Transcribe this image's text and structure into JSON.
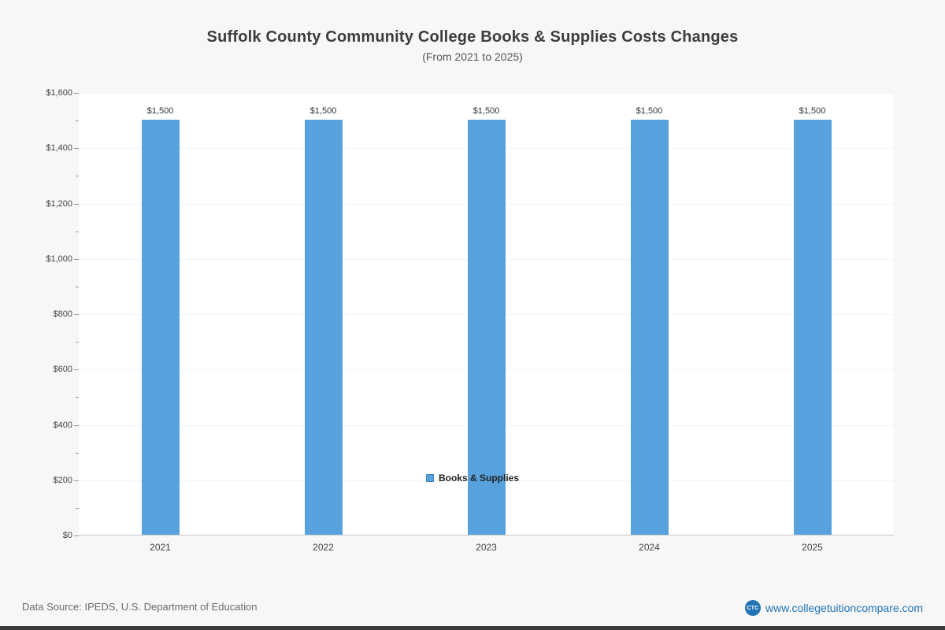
{
  "page": {
    "background": "#f7f7f7"
  },
  "chart_data": {
    "type": "bar",
    "title": "Suffolk County Community College Books & Supplies Costs Changes",
    "subtitle": "(From 2021 to 2025)",
    "categories": [
      "2021",
      "2022",
      "2023",
      "2024",
      "2025"
    ],
    "series": [
      {
        "name": "Books & Supplies",
        "values": [
          1500,
          1500,
          1500,
          1500,
          1500
        ],
        "color": "#57a2dc"
      }
    ],
    "value_labels": [
      "$1,500",
      "$1,500",
      "$1,500",
      "$1,500",
      "$1,500"
    ],
    "ylim": [
      0,
      1600
    ],
    "ytick_interval": 200,
    "ytick_minor_interval": 100,
    "ytick_labels": [
      "$0",
      "$200",
      "$400",
      "$600",
      "$800",
      "$1,000",
      "$1,200",
      "$1,400",
      "$1,600"
    ],
    "grid": true,
    "legend_position": "bottom"
  },
  "legend": {
    "label": "Books & Supplies",
    "swatch_color": "#57a2dc"
  },
  "footer": {
    "source": "Data Source: IPEDS, U.S. Department of Education",
    "website": "www.collegetuitioncompare.com",
    "logo_text": "CTC"
  }
}
